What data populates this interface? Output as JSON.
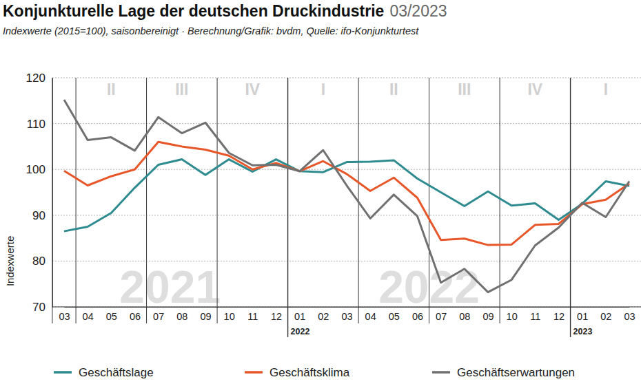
{
  "chart_data": {
    "type": "line",
    "title": "Konjunkturelle Lage der deutschen Druckindustrie",
    "title_date": "03/2023",
    "subtitle": "Indexwerte (2015=100), saisonbereinigt · Berechnung/Grafik: bvdm, Quelle: ifo-Konjunkturtest",
    "y_label": "Indexwerte",
    "categories": [
      "03",
      "04",
      "05",
      "06",
      "07",
      "08",
      "09",
      "10",
      "11",
      "12",
      "01",
      "02",
      "03",
      "04",
      "05",
      "06",
      "07",
      "08",
      "09",
      "10",
      "11",
      "12",
      "01",
      "02",
      "03"
    ],
    "x_groups": [
      {
        "label": "2022",
        "start": 10
      },
      {
        "label": "2023",
        "start": 22
      }
    ],
    "quarters": [
      {
        "label": "II",
        "start": 1,
        "end": 3
      },
      {
        "label": "III",
        "start": 4,
        "end": 6
      },
      {
        "label": "IV",
        "start": 7,
        "end": 9
      },
      {
        "label": "I",
        "start": 10,
        "end": 12
      },
      {
        "label": "II",
        "start": 13,
        "end": 15
      },
      {
        "label": "III",
        "start": 16,
        "end": 18
      },
      {
        "label": "IV",
        "start": 19,
        "end": 21
      },
      {
        "label": "I",
        "start": 22,
        "end": 24
      }
    ],
    "watermarks": [
      {
        "text": "2021",
        "start": 0,
        "end": 9
      },
      {
        "text": "2022",
        "start": 10,
        "end": 21
      }
    ],
    "series": [
      {
        "name": "Geschäftslage",
        "color": "#2e8b8f",
        "values": [
          86.5,
          87.5,
          90.5,
          96,
          101,
          102.2,
          98.8,
          102.2,
          99.5,
          102.2,
          99.6,
          99.4,
          101.6,
          101.7,
          102,
          98,
          95,
          92,
          95.2,
          92.1,
          92.6,
          89,
          92.5,
          97.4,
          96.4
        ]
      },
      {
        "name": "Geschäftsklima",
        "color": "#e8572a",
        "values": [
          99.7,
          96.5,
          98.5,
          100,
          106,
          105,
          104.3,
          103,
          100,
          101.4,
          99.6,
          101.8,
          99,
          95.3,
          98.2,
          93.8,
          84.6,
          84.9,
          83.5,
          83.6,
          87.9,
          88.1,
          92.4,
          93.4,
          96.9
        ]
      },
      {
        "name": "Geschäftserwartungen",
        "color": "#707070",
        "values": [
          115.2,
          106.4,
          107,
          104.1,
          111.4,
          107.9,
          110.2,
          103.6,
          100.9,
          101,
          99.6,
          104.2,
          96.5,
          89.3,
          94.5,
          89.8,
          75.3,
          78.3,
          73.2,
          75.9,
          83.4,
          87.3,
          92.7,
          89.6,
          97.4
        ]
      }
    ],
    "ylim": [
      70,
      120
    ],
    "yticks": [
      70,
      80,
      90,
      100,
      110,
      120
    ],
    "grid": true,
    "legend": "bottom"
  }
}
